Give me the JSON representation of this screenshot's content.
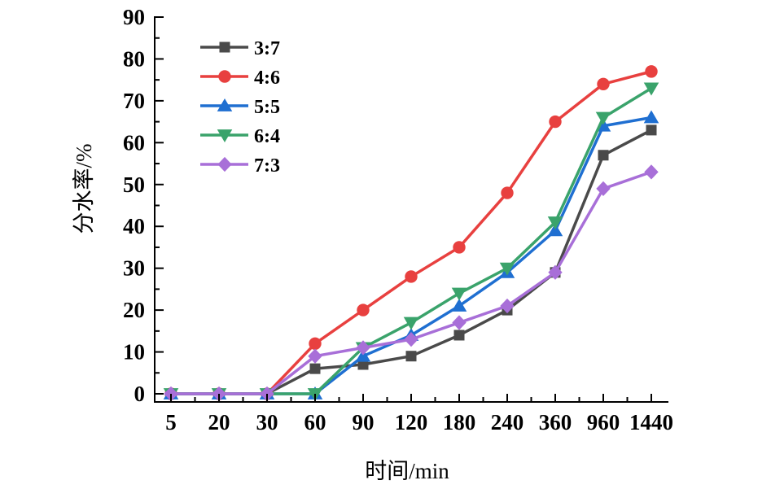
{
  "chart_data": {
    "type": "line",
    "title": "",
    "xlabel": "时间/min",
    "ylabel": "分水率/%",
    "categories": [
      "5",
      "20",
      "30",
      "60",
      "90",
      "120",
      "180",
      "240",
      "360",
      "960",
      "1440"
    ],
    "ylim": [
      0,
      90
    ],
    "yticks": [
      0,
      10,
      20,
      30,
      40,
      50,
      60,
      70,
      80,
      90
    ],
    "grid": false,
    "legend_position": "top-left",
    "series": [
      {
        "name": "3:7",
        "color": "#4a4a4a",
        "marker": "square",
        "values": [
          0,
          0,
          0,
          6,
          7,
          9,
          14,
          20,
          29,
          57,
          63
        ]
      },
      {
        "name": "4:6",
        "color": "#e8403f",
        "marker": "circle",
        "values": [
          0,
          0,
          0,
          12,
          20,
          28,
          35,
          48,
          65,
          74,
          77
        ]
      },
      {
        "name": "5:5",
        "color": "#1f6fd1",
        "marker": "triangle-up",
        "values": [
          0,
          0,
          0,
          0,
          9,
          14,
          21,
          29,
          39,
          64,
          66
        ]
      },
      {
        "name": "6:4",
        "color": "#3aa36b",
        "marker": "triangle-down",
        "values": [
          0,
          0,
          0,
          0,
          11,
          17,
          24,
          30,
          41,
          66,
          73
        ]
      },
      {
        "name": "7:3",
        "color": "#a86fd8",
        "marker": "diamond",
        "values": [
          0,
          0,
          0,
          9,
          11,
          13,
          17,
          21,
          29,
          49,
          53
        ]
      }
    ]
  }
}
